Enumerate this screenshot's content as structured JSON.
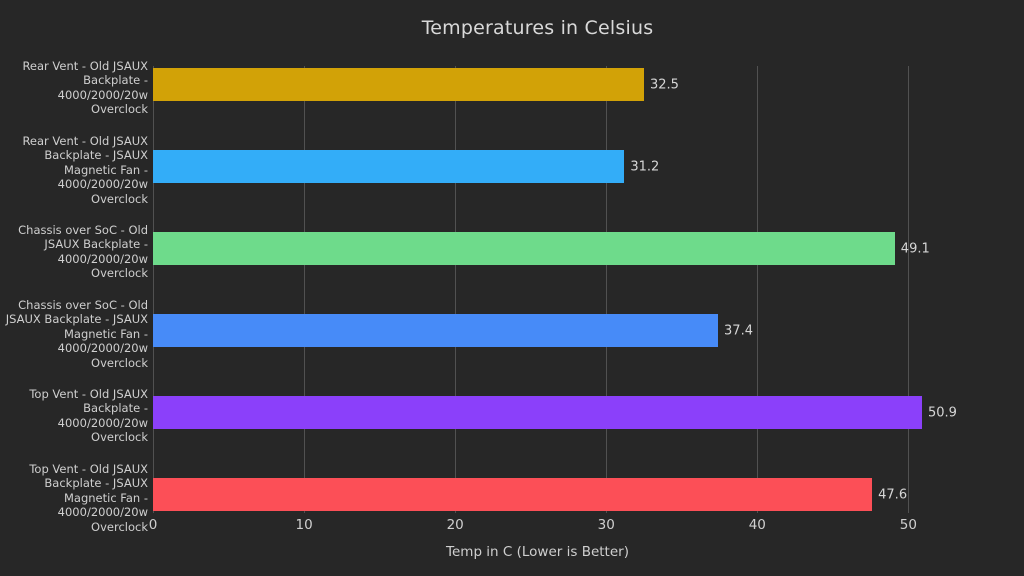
{
  "colors": {
    "background": "#272727",
    "gridline": "#515151",
    "title_text": "#d9d9d9",
    "axis_text": "#cfcfcf",
    "value_text": "#d6d6d6"
  },
  "chart_data": {
    "type": "bar",
    "orientation": "horizontal",
    "title": "Temperatures in Celsius",
    "xlabel": "Temp in C (Lower is Better)",
    "ylabel": "",
    "xlim": [
      0,
      50.9
    ],
    "xticks": [
      0,
      10,
      20,
      30,
      40,
      50
    ],
    "grid": true,
    "legend": false,
    "categories": [
      "Rear Vent - Old JSAUX Backplate - 4000/2000/20w Overclock",
      "Rear Vent - Old JSAUX Backplate - JSAUX Magnetic Fan - 4000/2000/20w Overclock",
      "Chassis over SoC - Old JSAUX Backplate - 4000/2000/20w Overclock",
      "Chassis over SoC - Old JSAUX Backplate - JSAUX Magnetic Fan - 4000/2000/20w Overclock",
      "Top Vent - Old JSAUX Backplate - 4000/2000/20w Overclock",
      "Top Vent - Old JSAUX Backplate - JSAUX Magnetic Fan - 4000/2000/20w Overclock"
    ],
    "categories_wrapped": [
      [
        "Rear Vent - Old JSAUX",
        "Backplate -",
        "4000/2000/20w Overclock"
      ],
      [
        "Rear Vent - Old JSAUX",
        "Backplate - JSAUX",
        "Magnetic Fan -",
        "4000/2000/20w Overclock"
      ],
      [
        "Chassis over SoC - Old",
        "JSAUX Backplate -",
        "4000/2000/20w Overclock"
      ],
      [
        "Chassis over SoC - Old",
        "JSAUX Backplate - JSAUX",
        "Magnetic Fan -",
        "4000/2000/20w Overclock"
      ],
      [
        "Top Vent - Old JSAUX",
        "Backplate -",
        "4000/2000/20w Overclock"
      ],
      [
        "Top Vent - Old JSAUX",
        "Backplate - JSAUX",
        "Magnetic Fan -",
        "4000/2000/20w Overclock"
      ]
    ],
    "values": [
      32.5,
      31.2,
      49.1,
      37.4,
      50.9,
      47.6
    ],
    "value_labels": [
      "32.5",
      "31.2",
      "49.1",
      "37.4",
      "50.9",
      "47.6"
    ],
    "bar_colors": [
      "#d2a207",
      "#33adf8",
      "#6edb8b",
      "#478bf8",
      "#8b40fa",
      "#fc4f57"
    ]
  }
}
